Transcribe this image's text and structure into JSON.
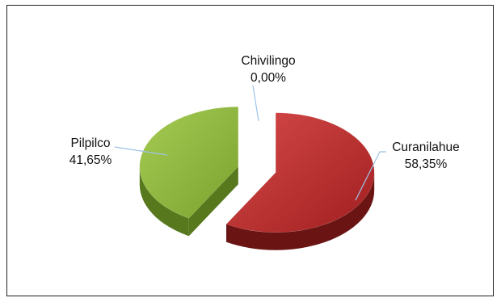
{
  "chart_data": {
    "type": "pie",
    "style": "3d-exploded",
    "categories": [
      "Curanilahue",
      "Pilpilco",
      "Chivilingo"
    ],
    "values": [
      58.35,
      41.65,
      0.0
    ],
    "value_labels": [
      "58,35%",
      "41,65%",
      "0,00%"
    ],
    "colors": [
      "#b02a2a",
      "#8bb33c",
      "#4f81bd"
    ],
    "side_colors": [
      "#6a1414",
      "#57781d",
      "#2f4f7a"
    ],
    "leader_line_color": "#9ec3e6",
    "title": "",
    "legend": "none"
  }
}
